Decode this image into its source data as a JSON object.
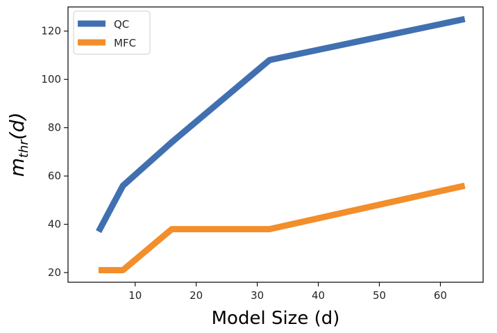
{
  "chart_data": {
    "type": "line",
    "title": "",
    "xlabel": "Model Size (d)",
    "ylabel_base": "m",
    "ylabel_sub": "thr",
    "ylabel_arg": "(d)",
    "xlim": [
      -1.0,
      67.0
    ],
    "ylim": [
      16.0,
      130.0
    ],
    "xticks": [
      10,
      20,
      30,
      40,
      50,
      60
    ],
    "yticks": [
      20,
      40,
      60,
      80,
      100,
      120
    ],
    "grid": false,
    "legend_position": "top-left",
    "series": [
      {
        "name": "QC",
        "color": "#4170b0",
        "x": [
          4,
          8,
          16,
          32,
          64
        ],
        "y": [
          37,
          56,
          74,
          108,
          125
        ]
      },
      {
        "name": "MFC",
        "color": "#f28e2b",
        "x": [
          4,
          8,
          16,
          32,
          64
        ],
        "y": [
          21,
          21,
          38,
          38,
          56
        ]
      }
    ]
  }
}
